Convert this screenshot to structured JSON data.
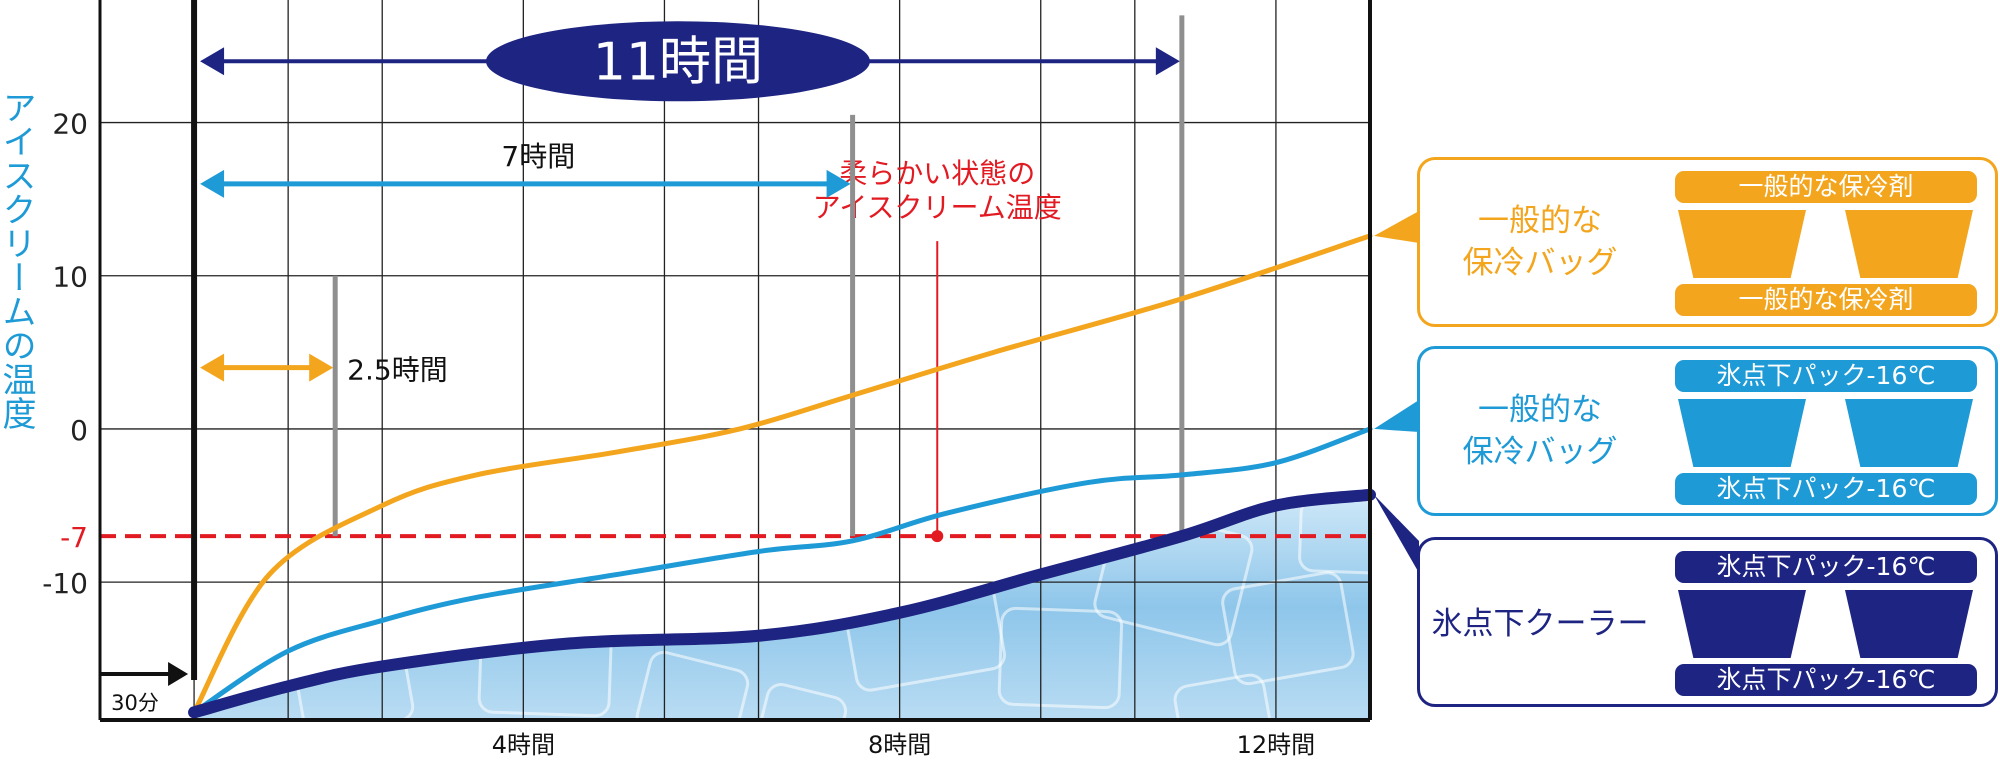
{
  "colors": {
    "orange": "#F3A51D",
    "light_blue": "#1E9AD6",
    "navy": "#1E2482",
    "red": "#E21A22",
    "grid": "#222222",
    "ylabel": "#1E9AD6"
  },
  "chart_data": {
    "type": "line",
    "ylabel": "アイスクリームの温度",
    "xlim": [
      0,
      13.5
    ],
    "ylim": [
      -19,
      28
    ],
    "y_ticks": [
      {
        "value": 20,
        "label": "20",
        "color": "#222222"
      },
      {
        "value": 10,
        "label": "10",
        "color": "#222222"
      },
      {
        "value": 0,
        "label": "0",
        "color": "#222222"
      },
      {
        "value": -7,
        "label": "-7",
        "color": "#E21A22"
      },
      {
        "value": -10,
        "label": "-10",
        "color": "#222222"
      }
    ],
    "x_ticks": [
      {
        "value": 4.5,
        "label": "4時間"
      },
      {
        "value": 8.5,
        "label": "8時間"
      },
      {
        "value": 12.5,
        "label": "12時間"
      }
    ],
    "x_grid": [
      1,
      2,
      3,
      4.5,
      6,
      7,
      8.5,
      10,
      11,
      12.5,
      13.5
    ],
    "y_grid": [
      20,
      10,
      0,
      -10
    ],
    "threshold": {
      "value": -7,
      "label": "柔らかい状態の\nアイスクリーム温度",
      "marker_x": 8.9,
      "label_x": 8.9,
      "label_y": 15
    },
    "start_marker": {
      "label": "30分"
    },
    "series": [
      {
        "name": "一般的な保冷剤",
        "color": "#F3A51D",
        "points": [
          [
            1,
            -18.5
          ],
          [
            1.8,
            -9.5
          ],
          [
            3,
            -5
          ],
          [
            4,
            -3
          ],
          [
            5.5,
            -1.5
          ],
          [
            6.8,
            0
          ],
          [
            8,
            2.2
          ],
          [
            9.5,
            5
          ],
          [
            11.5,
            8.5
          ],
          [
            13.5,
            12.6
          ]
        ]
      },
      {
        "name": "氷点下パック-16℃ (一般的な保冷バッグ)",
        "color": "#1E9AD6",
        "points": [
          [
            1,
            -18.5
          ],
          [
            2,
            -14.5
          ],
          [
            3,
            -12.5
          ],
          [
            4,
            -11
          ],
          [
            5.5,
            -9.5
          ],
          [
            7,
            -8
          ],
          [
            8,
            -7.3
          ],
          [
            9,
            -5.5
          ],
          [
            10.5,
            -3.5
          ],
          [
            11.5,
            -3
          ],
          [
            12.5,
            -2.2
          ],
          [
            13.5,
            0
          ]
        ]
      },
      {
        "name": "氷点下パック-16℃ (氷点下クーラー)",
        "color": "#1E2482",
        "points": [
          [
            1,
            -18.5
          ],
          [
            2,
            -16.8
          ],
          [
            3,
            -15.5
          ],
          [
            5,
            -14
          ],
          [
            7,
            -13.5
          ],
          [
            8.5,
            -12
          ],
          [
            10,
            -9.5
          ],
          [
            11.5,
            -7
          ],
          [
            12.5,
            -5
          ],
          [
            13.5,
            -4.3
          ]
        ]
      }
    ],
    "annotations": [
      {
        "label": "11時間",
        "x_from": 1,
        "x_to": 11.5,
        "y": 24,
        "color": "#1E2482",
        "style": "ellipse",
        "vline_top": 27
      },
      {
        "label": "7時間",
        "x_from": 1,
        "x_to": 8,
        "y": 16,
        "color": "#1E9AD6",
        "style": "text",
        "vline_top": 20.5
      },
      {
        "label": "2.5時間",
        "x_from": 1,
        "x_to": 2.5,
        "y": 4,
        "color": "#F3A51D",
        "style": "text",
        "vline_top": 10
      }
    ]
  },
  "legend": [
    {
      "label": "一般的な\n保冷バッグ",
      "color": "#F3A51D",
      "label_color": "#F3A51D",
      "top_pill": "一般的な保冷剤",
      "bottom_pill": "一般的な保冷剤"
    },
    {
      "label": "一般的な\n保冷バッグ",
      "color": "#1E9AD6",
      "label_color": "#1E9AD6",
      "top_pill": "氷点下パック-16℃",
      "bottom_pill": "氷点下パック-16℃"
    },
    {
      "label": "氷点下クーラー",
      "color": "#1E2482",
      "label_color": "#1E2482",
      "top_pill": "氷点下パック-16℃",
      "bottom_pill": "氷点下パック-16℃"
    }
  ]
}
